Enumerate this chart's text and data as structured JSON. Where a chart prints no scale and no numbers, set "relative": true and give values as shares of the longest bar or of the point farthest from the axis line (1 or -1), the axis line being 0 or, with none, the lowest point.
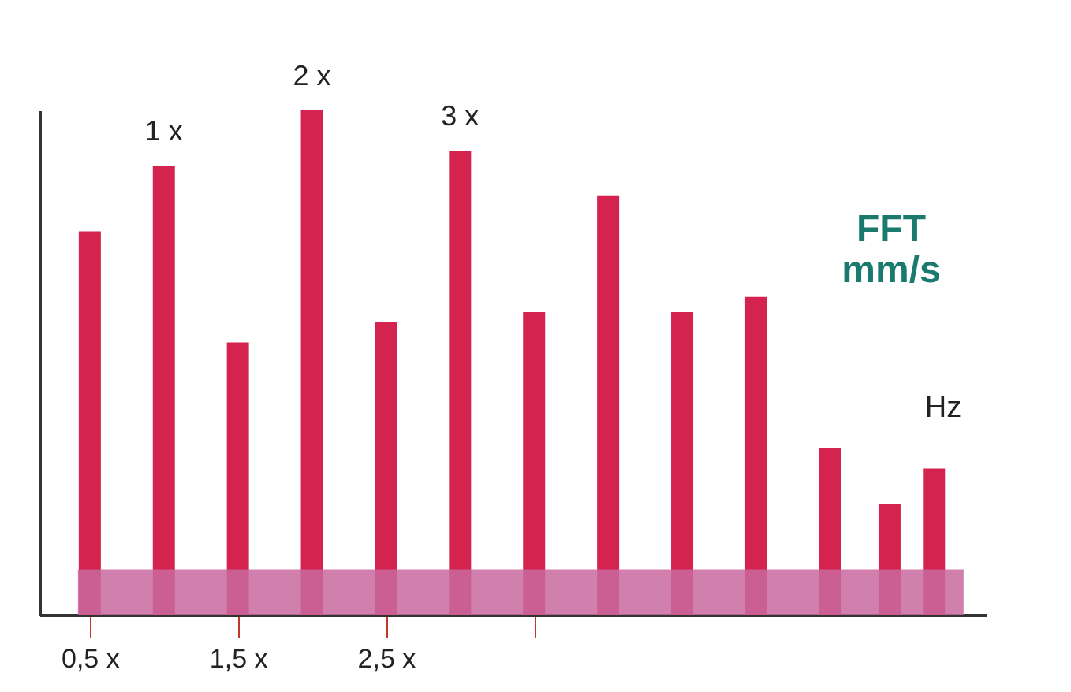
{
  "chart_data": {
    "type": "bar",
    "relative": true,
    "ylabel": "FFT mm/s",
    "xlabel": "Hz",
    "grid": false,
    "xlim": [
      0.16,
      6.55
    ],
    "xticks": [
      {
        "value": 0.5,
        "label": "0,5 x"
      },
      {
        "value": 1.5,
        "label": "1,5 x"
      },
      {
        "value": 2.5,
        "label": "2,5 x"
      },
      {
        "value": 3.5,
        "label": null
      }
    ],
    "annotations": [
      {
        "text": "1 x",
        "x": 1,
        "y": 0.89
      },
      {
        "text": "2 x",
        "x": 2,
        "y": 1
      },
      {
        "text": "3 x",
        "x": 3,
        "y": 0.92
      }
    ],
    "series": [
      {
        "color": "#d4234f",
        "x": [
          0.5,
          1,
          1.5,
          2,
          2.5,
          3,
          3.5,
          4,
          4.5,
          5,
          5.5,
          5.9,
          6.2
        ],
        "values": [
          0.76,
          0.89,
          0.54,
          1,
          0.58,
          0.92,
          0.6,
          0.83,
          0.6,
          0.63,
          0.33,
          0.22,
          0.29
        ]
      },
      {
        "type": "area",
        "color": "#c96aa0",
        "x": [
          0.42,
          6.4
        ],
        "values": [
          0.09,
          0.09
        ]
      }
    ]
  }
}
